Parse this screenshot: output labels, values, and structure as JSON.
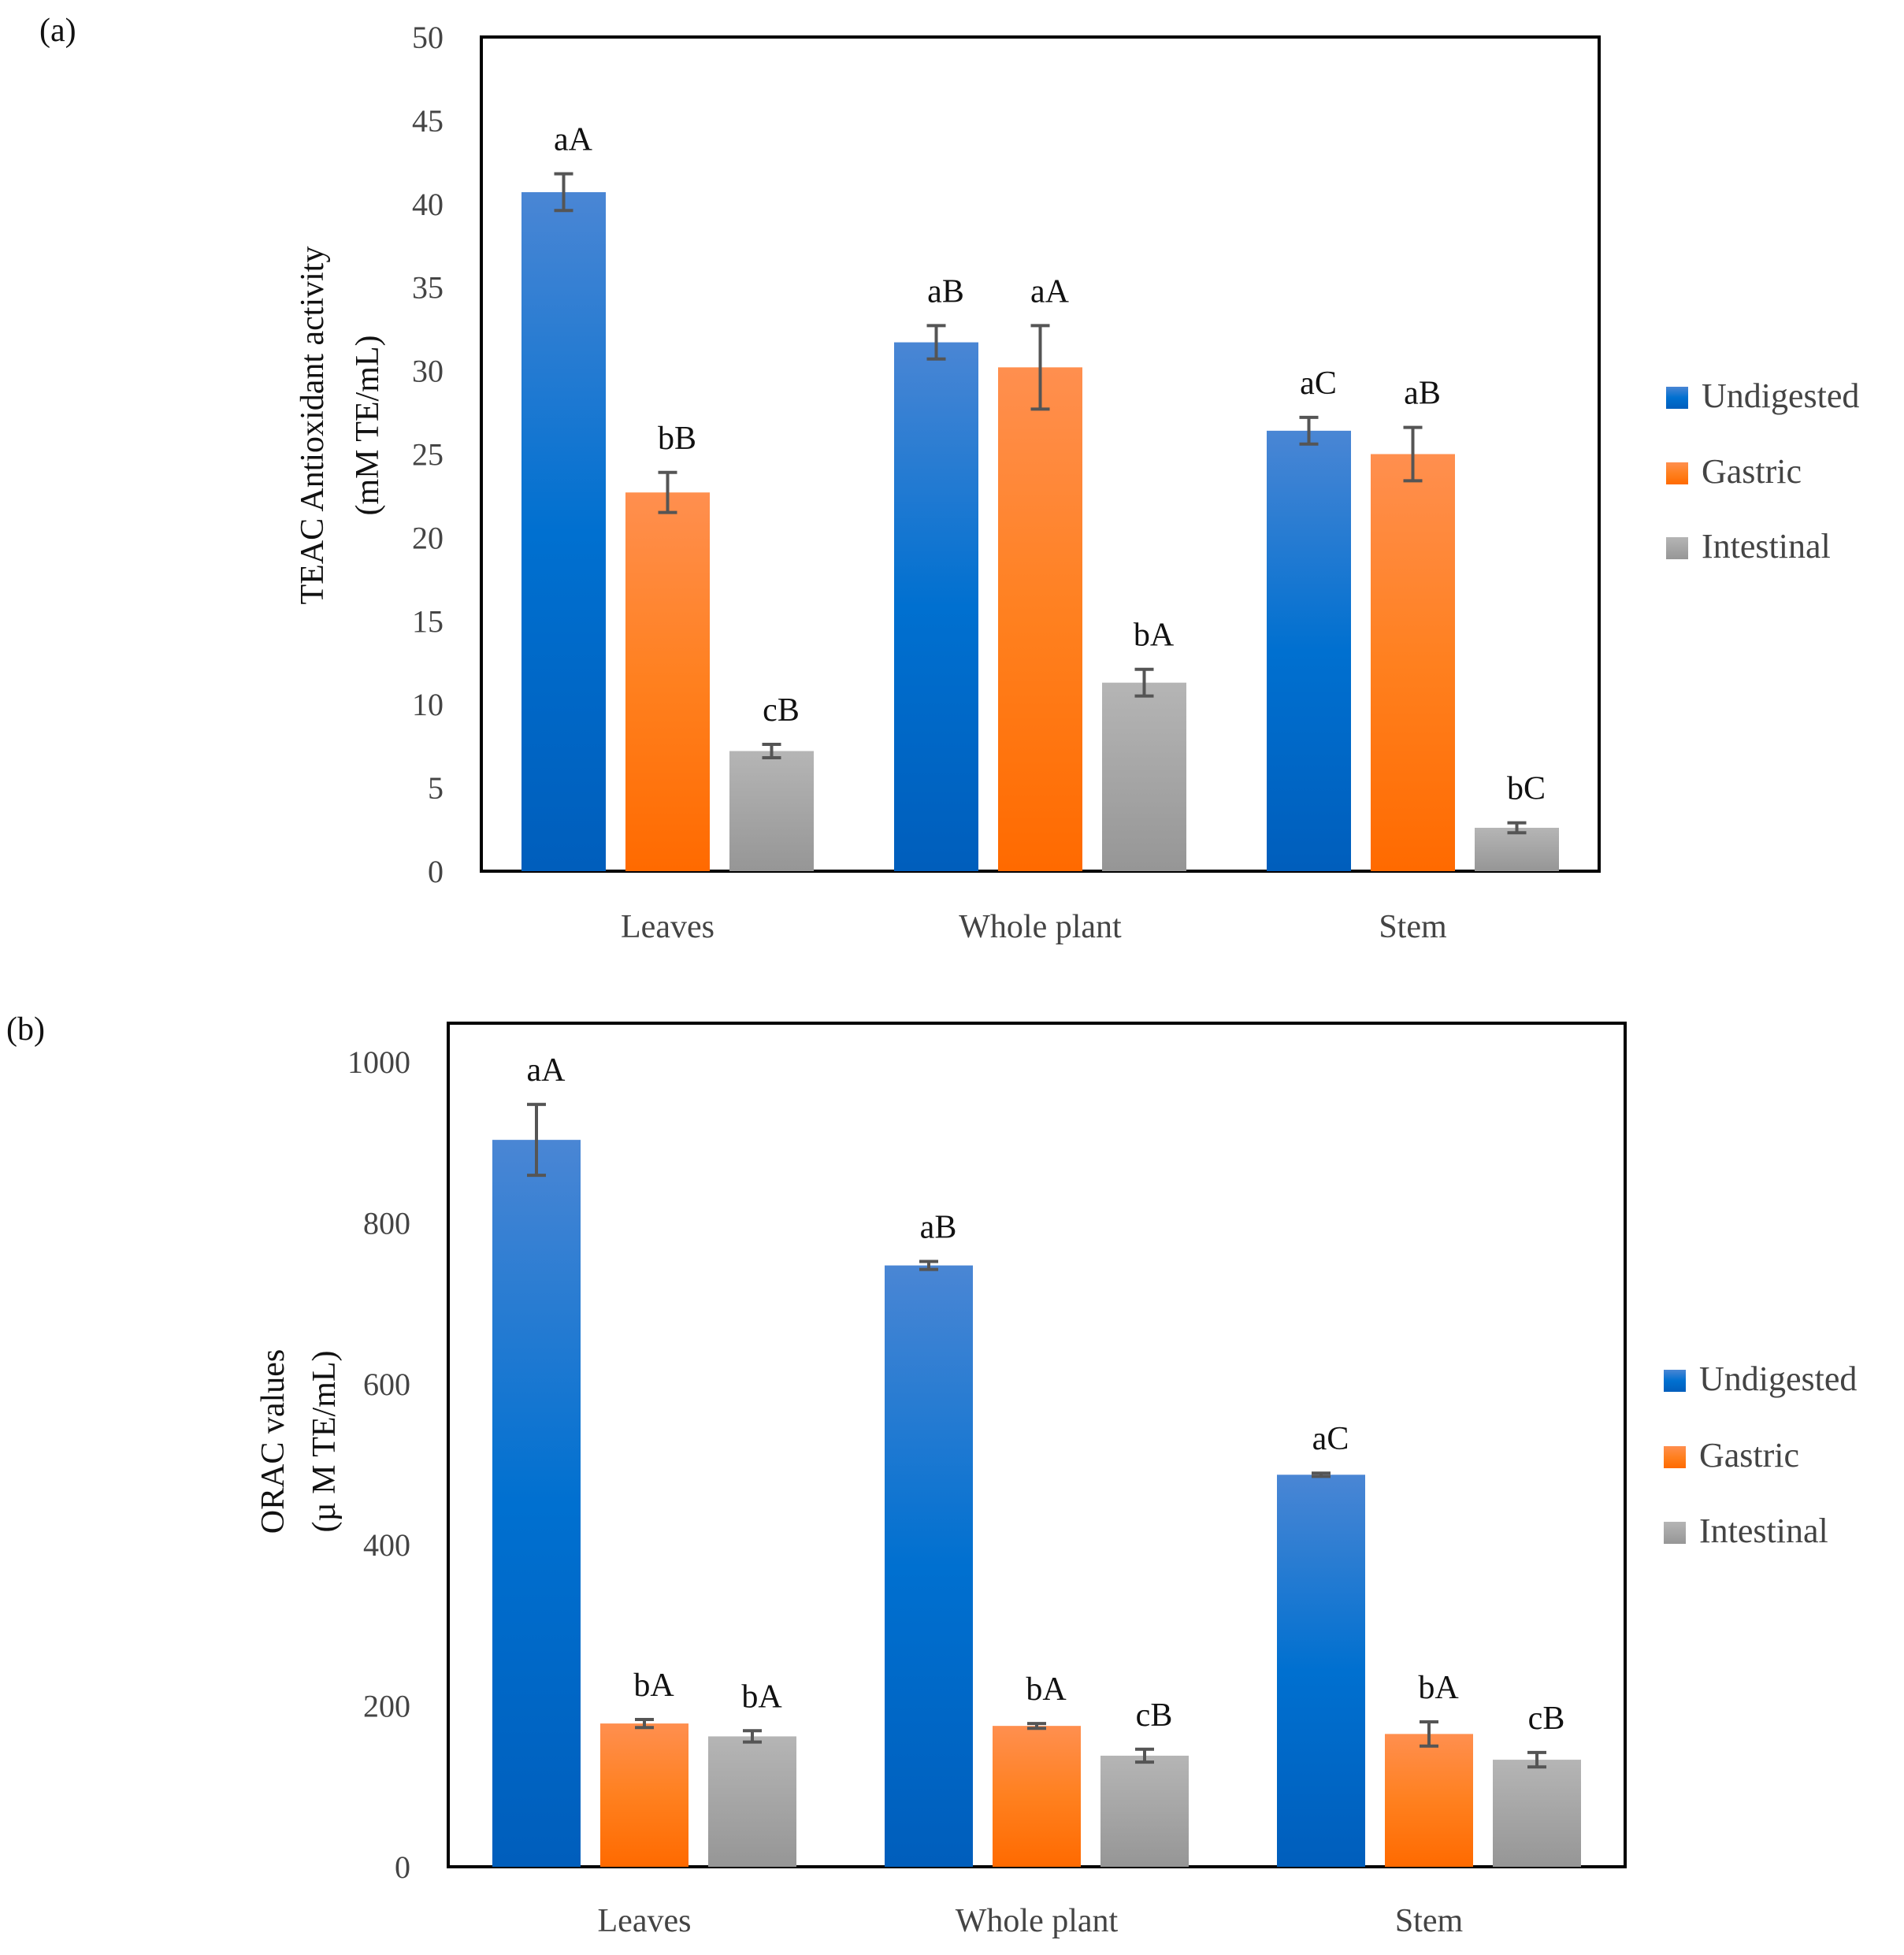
{
  "chart_data": [
    {
      "type": "bar",
      "panel_label": "(a)",
      "ylabel_line1": "TEAC Antioxidant activity",
      "ylabel_line2": "(mM TE/mL)",
      "ylim": [
        0,
        50
      ],
      "yticks": [
        0,
        5,
        10,
        15,
        20,
        25,
        30,
        35,
        40,
        45,
        50
      ],
      "grid": false,
      "legend_position": "right",
      "categories": [
        "Leaves",
        "Whole plant",
        "Stem"
      ],
      "series": [
        {
          "name": "Undigested",
          "color": "#0070cc",
          "values": [
            40.7,
            31.7,
            26.4
          ],
          "errors": [
            1.1,
            1.0,
            0.8
          ],
          "labels": [
            "aA",
            "aB",
            "aC"
          ]
        },
        {
          "name": "Gastric",
          "color": "#ff7a1a",
          "values": [
            22.7,
            30.2,
            25.0
          ],
          "errors": [
            1.2,
            2.5,
            1.6
          ],
          "labels": [
            "bB",
            "aA",
            "aB"
          ]
        },
        {
          "name": "Intestinal",
          "color": "#a6a6a6",
          "values": [
            7.2,
            11.3,
            2.6
          ],
          "errors": [
            0.4,
            0.8,
            0.3
          ],
          "labels": [
            "cB",
            "bA",
            "bC"
          ]
        }
      ]
    },
    {
      "type": "bar",
      "panel_label": "(b)",
      "ylabel_line1": "ORAC values",
      "ylabel_line2": "(µ M TE/mL)",
      "ylim": [
        0,
        1000
      ],
      "yticks": [
        0,
        200,
        400,
        600,
        800,
        1000
      ],
      "grid": false,
      "legend_position": "right",
      "categories": [
        "Leaves",
        "Whole plant",
        "Stem"
      ],
      "series": [
        {
          "name": "Undigested",
          "color": "#0070cc",
          "values": [
            903,
            747,
            487
          ],
          "errors": [
            44,
            5,
            2
          ],
          "labels": [
            "aA",
            "aB",
            "aC"
          ]
        },
        {
          "name": "Gastric",
          "color": "#ff7a1a",
          "values": [
            178,
            175,
            165
          ],
          "errors": [
            5,
            3,
            15
          ],
          "labels": [
            "bA",
            "bA",
            "bA"
          ]
        },
        {
          "name": "Intestinal",
          "color": "#a6a6a6",
          "values": [
            162,
            138,
            133
          ],
          "errors": [
            7,
            8,
            9
          ],
          "labels": [
            "bA",
            "cB",
            "cB"
          ]
        }
      ]
    }
  ]
}
